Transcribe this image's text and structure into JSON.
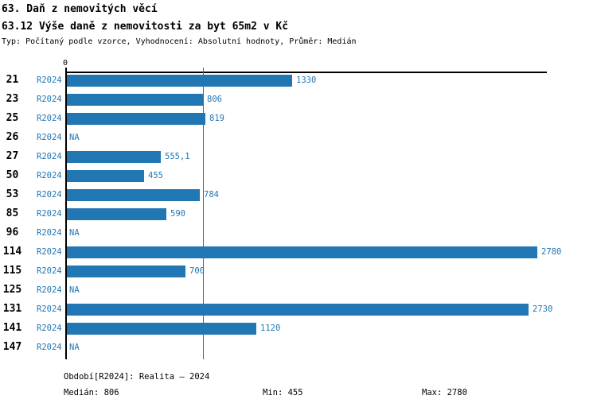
{
  "title": "63. Daň z nemovitých věcí",
  "subtitle": "63.12 Výše daně z nemovitosti za byt 65m2 v Kč",
  "meta": "Typ: Počítaný podle vzorce, Vyhodnocení: Absolutní hodnoty, Průměr: Medián",
  "chart_data": {
    "type": "bar",
    "orientation": "horizontal",
    "series_label": "R2024",
    "categories": [
      "21",
      "23",
      "25",
      "26",
      "27",
      "50",
      "53",
      "85",
      "96",
      "114",
      "115",
      "125",
      "131",
      "141",
      "147"
    ],
    "values": [
      1330,
      806,
      819,
      null,
      555.1,
      455,
      784,
      590,
      null,
      2780,
      700,
      null,
      2730,
      1120,
      null
    ],
    "value_labels": [
      "1330",
      "806",
      "819",
      "NA",
      "555,1",
      "455",
      "784",
      "590",
      "NA",
      "2780",
      "700",
      "NA",
      "2730",
      "1120",
      "NA"
    ],
    "na_label": "NA",
    "zero_label": "0",
    "xlim": [
      0,
      2840
    ],
    "median_line_value": 806,
    "grid": false,
    "legend_position": "none",
    "bar_color": "#2077b4",
    "title": "63.12 Výše daně z nemovitosti za byt 65m2 v Kč",
    "xlabel": "",
    "ylabel": ""
  },
  "footer": {
    "period": "Období[R2024]: Realita – 2024",
    "median": "Medián: 806",
    "min": "Min: 455",
    "max": "Max: 2780"
  },
  "colors": {
    "accent": "#2077b4",
    "axis": "#000000",
    "background": "#ffffff",
    "text": "#000000"
  }
}
